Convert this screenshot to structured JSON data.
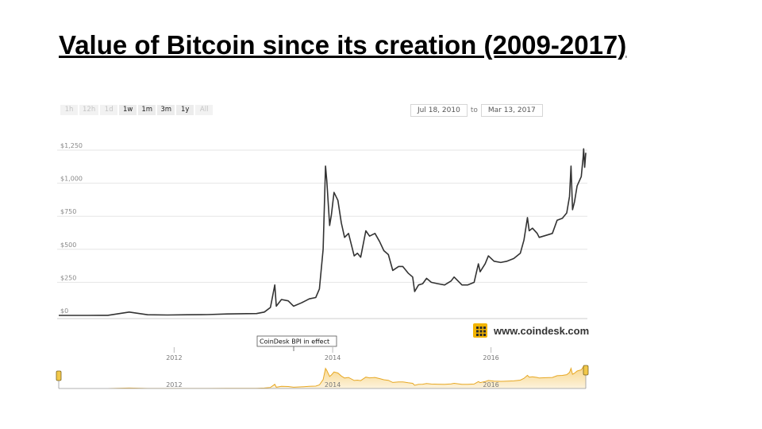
{
  "slide": {
    "title": "Value of Bitcoin since its creation (2009-2017)"
  },
  "toolbar": {
    "range_buttons": [
      {
        "label": "1h",
        "faded": true
      },
      {
        "label": "12h",
        "faded": true
      },
      {
        "label": "1d",
        "faded": true
      },
      {
        "label": "1w",
        "faded": false
      },
      {
        "label": "1m",
        "faded": false
      },
      {
        "label": "3m",
        "faded": false
      },
      {
        "label": "1y",
        "faded": false
      },
      {
        "label": "All",
        "faded": true
      }
    ],
    "date_from": "Jul 18, 2010",
    "date_to_word": "to",
    "date_to": "Mar 13, 2017"
  },
  "chart_data": {
    "type": "line",
    "x_range": [
      "2010-07-18",
      "2017-03-13"
    ],
    "ylim": [
      0,
      1250
    ],
    "y_ticks": [
      "$0",
      "$250",
      "$500",
      "$750",
      "$1,000",
      "$1,250"
    ],
    "x_ticks": [
      "2012",
      "2014",
      "2016"
    ],
    "series": [
      {
        "color": "#333333",
        "x": [
          "2010-07-18",
          "2010-12-01",
          "2011-03-01",
          "2011-06-08",
          "2011-09-01",
          "2011-12-01",
          "2012-03-01",
          "2012-06-01",
          "2012-09-01",
          "2012-12-01",
          "2013-01-15",
          "2013-02-20",
          "2013-03-20",
          "2013-04-09",
          "2013-04-16",
          "2013-05-10",
          "2013-06-10",
          "2013-07-05",
          "2013-08-10",
          "2013-09-15",
          "2013-10-15",
          "2013-11-01",
          "2013-11-18",
          "2013-11-29",
          "2013-12-05",
          "2013-12-18",
          "2013-12-26",
          "2014-01-07",
          "2014-01-25",
          "2014-02-10",
          "2014-02-25",
          "2014-03-15",
          "2014-04-10",
          "2014-04-25",
          "2014-05-10",
          "2014-06-03",
          "2014-06-20",
          "2014-07-15",
          "2014-08-05",
          "2014-08-25",
          "2014-09-15",
          "2014-10-05",
          "2014-11-01",
          "2014-11-20",
          "2014-12-15",
          "2015-01-05",
          "2015-01-14",
          "2015-02-01",
          "2015-02-20",
          "2015-03-10",
          "2015-04-01",
          "2015-05-01",
          "2015-06-01",
          "2015-07-01",
          "2015-07-15",
          "2015-08-20",
          "2015-09-15",
          "2015-10-15",
          "2015-11-04",
          "2015-11-12",
          "2015-12-05",
          "2015-12-20",
          "2016-01-15",
          "2016-02-15",
          "2016-03-15",
          "2016-04-15",
          "2016-05-15",
          "2016-06-01",
          "2016-06-17",
          "2016-06-25",
          "2016-07-10",
          "2016-08-01",
          "2016-08-10",
          "2016-09-10",
          "2016-10-10",
          "2016-11-01",
          "2016-11-25",
          "2016-12-15",
          "2016-12-28",
          "2017-01-04",
          "2017-01-11",
          "2017-01-20",
          "2017-02-01",
          "2017-02-20",
          "2017-03-01",
          "2017-03-03",
          "2017-03-08",
          "2017-03-13"
        ],
        "y": [
          0.1,
          0.3,
          0.9,
          25,
          5,
          3,
          5,
          6,
          11,
          13,
          14,
          25,
          60,
          230,
          70,
          120,
          110,
          70,
          95,
          125,
          135,
          200,
          500,
          1130,
          1020,
          680,
          760,
          930,
          870,
          700,
          590,
          620,
          450,
          470,
          440,
          640,
          600,
          620,
          560,
          490,
          460,
          340,
          370,
          370,
          320,
          290,
          180,
          230,
          240,
          280,
          250,
          240,
          230,
          260,
          290,
          230,
          230,
          250,
          390,
          330,
          390,
          450,
          410,
          400,
          410,
          430,
          470,
          570,
          740,
          640,
          660,
          620,
          590,
          605,
          620,
          720,
          735,
          775,
          900,
          1130,
          800,
          860,
          980,
          1050,
          1200,
          1260,
          1120,
          1230
        ]
      }
    ],
    "annotation": "CoinDesk BPI in effect",
    "brand": "www.coindesk.com",
    "navigator_ticks": [
      "2012",
      "2014",
      "2016"
    ]
  }
}
